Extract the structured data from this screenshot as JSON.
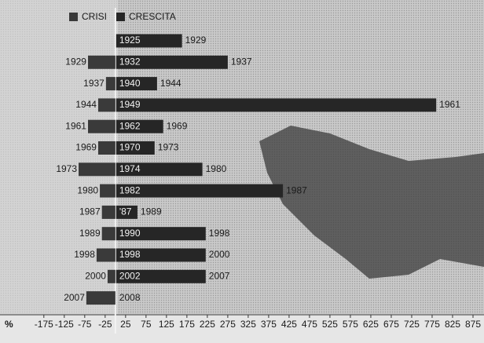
{
  "chart_data": {
    "type": "bar",
    "orientation": "horizontal",
    "xlabel": "%",
    "xlim": [
      -190,
      900
    ],
    "xticks": [
      -175,
      -125,
      -75,
      -25,
      25,
      75,
      125,
      175,
      225,
      275,
      325,
      375,
      425,
      475,
      525,
      575,
      625,
      675,
      725,
      775,
      825,
      875
    ],
    "series": [
      {
        "name": "CRISI",
        "color": "#3a3a3a",
        "values": [
          null,
          -67,
          -23,
          -42,
          -67,
          -42,
          -90,
          -38,
          -33,
          -33,
          -46,
          -19,
          -71
        ],
        "labels": [
          null,
          "1929",
          "1937",
          "1944",
          "1961",
          "1969",
          "1973",
          "1980",
          "1987",
          "1989",
          "1998",
          "2000",
          "2007"
        ]
      },
      {
        "name": "CRESCITA",
        "color": "#262626",
        "values": [
          163,
          275,
          102,
          785,
          117,
          96,
          213,
          410,
          54,
          221,
          221,
          221,
          null
        ],
        "start_labels": [
          "1925",
          "1932",
          "1940",
          "1949",
          "1962",
          "1970",
          "1974",
          "1982",
          "'87",
          "1990",
          "1998",
          "2002",
          "2008"
        ],
        "end_labels": [
          "1929",
          "1937",
          "1944",
          "1961",
          "1969",
          "1973",
          "1980",
          "1987",
          "1989",
          "1998",
          "2000",
          "2007",
          null
        ]
      }
    ]
  }
}
